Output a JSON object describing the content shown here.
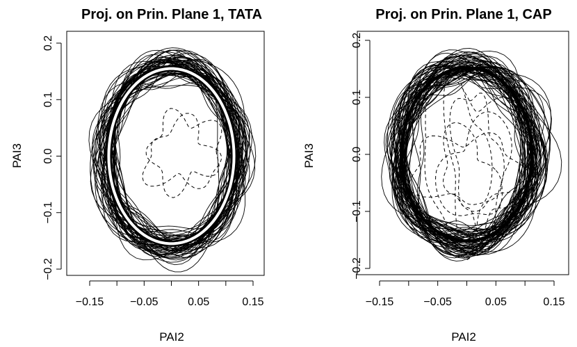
{
  "chart_data": [
    {
      "type": "line",
      "title": "Proj. on Prin. Plane 1, TATA",
      "xlabel": "PAI2",
      "ylabel": "PAI3",
      "xlim": [
        -0.175,
        0.175
      ],
      "ylim": [
        -0.205,
        0.205
      ],
      "xticks": [
        "-0.15",
        "-0.05",
        "0.05",
        "0.15"
      ],
      "xtick_values": [
        -0.15,
        -0.05,
        0.05,
        0.15
      ],
      "yticks": [
        "-0.2",
        "-0.1",
        "0.0",
        "0.1",
        "0.2"
      ],
      "ytick_values": [
        -0.2,
        -0.1,
        0.0,
        0.1,
        0.2
      ],
      "grid": false,
      "legend": "none",
      "series": [
        {
          "style": "solid",
          "color": "#000000",
          "description_count": 60,
          "center": [
            0.0,
            0.0
          ],
          "radius_x": 0.12,
          "radius_y": 0.16
        },
        {
          "style": "dashed",
          "color": "#000000",
          "description_count": 2,
          "center": [
            0.02,
            0.0
          ],
          "radius_x": 0.05,
          "radius_y": 0.06
        },
        {
          "style": "mean",
          "color": "#ffffff",
          "center": [
            0.0,
            0.0
          ],
          "radius_x": 0.115,
          "radius_y": 0.155
        }
      ]
    },
    {
      "type": "line",
      "title": "Proj. on Prin. Plane 1, CAP",
      "xlabel": "PAI2",
      "ylabel": "PAI3",
      "xlim": [
        -0.175,
        0.175
      ],
      "ylim": [
        -0.205,
        0.205
      ],
      "xticks": [
        "-0.15",
        "-0.05",
        "0.05",
        "0.15"
      ],
      "xtick_values": [
        -0.15,
        -0.05,
        0.05,
        0.15
      ],
      "yticks": [
        "-0.2",
        "-0.1",
        "0.0",
        "0.1",
        "0.2"
      ],
      "ytick_values": [
        -0.2,
        -0.1,
        0.0,
        0.1,
        0.2
      ],
      "grid": false,
      "legend": "none",
      "series": [
        {
          "style": "solid",
          "color": "#000000",
          "description_count": 60,
          "center": [
            0.0,
            0.0
          ],
          "radius_x": 0.115,
          "radius_y": 0.155
        },
        {
          "style": "dashed",
          "color": "#000000",
          "description_count": 6,
          "center": [
            0.01,
            -0.02
          ],
          "radius_x": 0.06,
          "radius_y": 0.1
        },
        {
          "style": "mean",
          "color": "#000000",
          "center": [
            0.0,
            0.0
          ],
          "radius_x": 0.112,
          "radius_y": 0.152
        }
      ]
    }
  ]
}
